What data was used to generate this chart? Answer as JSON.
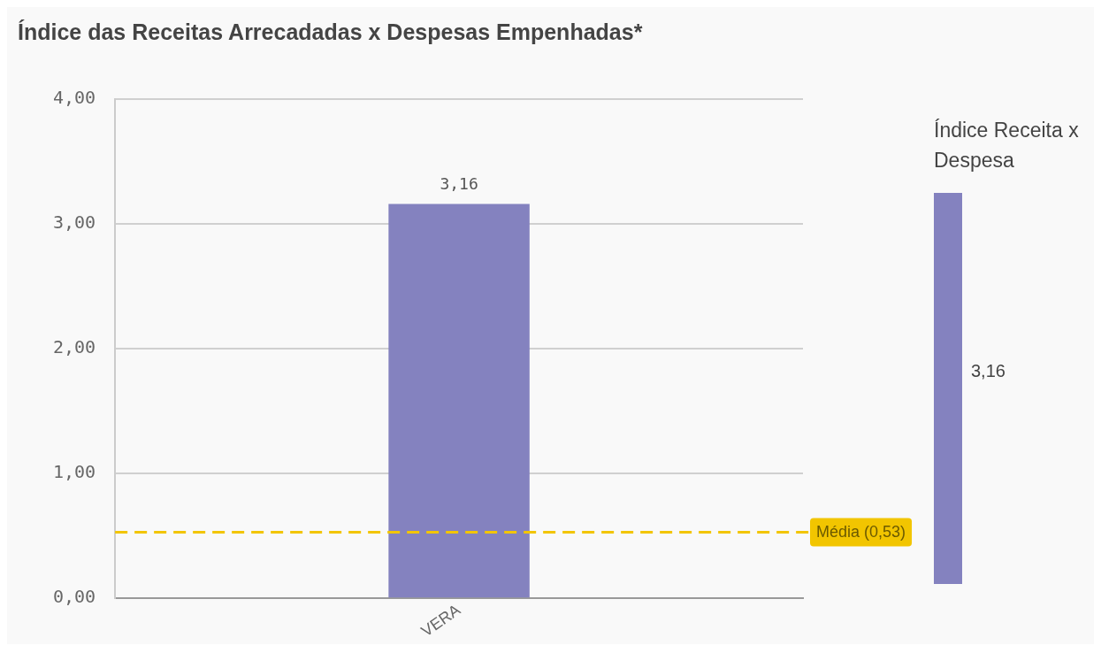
{
  "chart_data": {
    "type": "bar",
    "title": "Índice das Receitas Arrecadadas x Despesas Empenhadas*",
    "categories": [
      "VERA"
    ],
    "series": [
      {
        "color": "#8482bf",
        "values": [
          3.16
        ],
        "value_labels": [
          "3,16"
        ]
      }
    ],
    "annotations": [
      "3,16"
    ],
    "ylim": [
      0,
      4
    ],
    "yticks": [
      {
        "value": 0,
        "label": "0,00"
      },
      {
        "value": 1,
        "label": "1,00"
      },
      {
        "value": 2,
        "label": "2,00"
      },
      {
        "value": 3,
        "label": "3,00"
      },
      {
        "value": 4,
        "label": "4,00"
      }
    ],
    "grid": "y",
    "ref_lines": [
      {
        "axis": "y",
        "value": 0.53,
        "label": "Média (0,53)",
        "color": "#f2c500",
        "line_style": "dashed"
      }
    ],
    "legend_title": "Índice Receita x Despesa",
    "legend": "right"
  }
}
